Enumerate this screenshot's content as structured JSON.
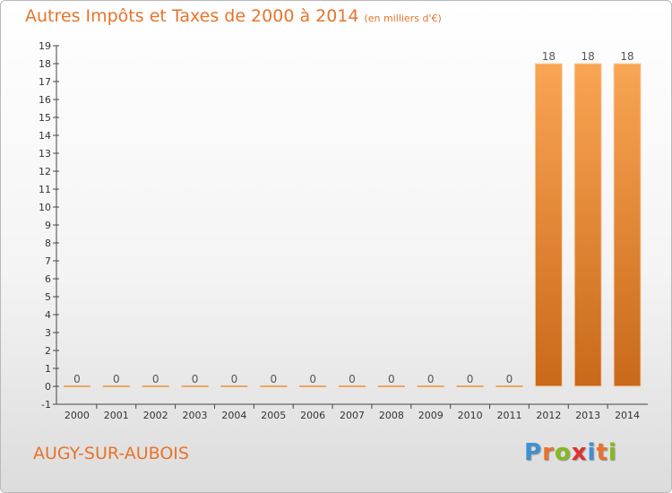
{
  "header": {
    "title": "Autres Impôts et Taxes de 2000 à 2014",
    "unit": "(en milliers d'€)"
  },
  "footer": {
    "commune": "AUGY-SUR-AUBOIS",
    "logo": {
      "text": "Proxiti",
      "letters": [
        {
          "ch": "P",
          "color": "#3f8fd2"
        },
        {
          "ch": "r",
          "color": "#e8732a"
        },
        {
          "ch": "o",
          "color": "#86b820"
        },
        {
          "ch": "x",
          "color": "#e03030"
        },
        {
          "ch": "i",
          "color": "#3f8fd2"
        },
        {
          "ch": "t",
          "color": "#e8732a"
        },
        {
          "ch": "i",
          "color": "#86b820"
        }
      ]
    }
  },
  "chart_data": {
    "type": "bar",
    "categories": [
      "2000",
      "2001",
      "2002",
      "2003",
      "2004",
      "2005",
      "2006",
      "2007",
      "2008",
      "2009",
      "2010",
      "2011",
      "2012",
      "2013",
      "2014"
    ],
    "values": [
      0,
      0,
      0,
      0,
      0,
      0,
      0,
      0,
      0,
      0,
      0,
      0,
      18,
      18,
      18
    ],
    "ylim": [
      -1,
      19
    ],
    "yticks": [
      -1,
      0,
      1,
      2,
      3,
      4,
      5,
      6,
      7,
      8,
      9,
      10,
      11,
      12,
      13,
      14,
      15,
      16,
      17,
      18,
      19
    ],
    "bar_color": "#f0902e",
    "grid": false,
    "legend": false
  }
}
